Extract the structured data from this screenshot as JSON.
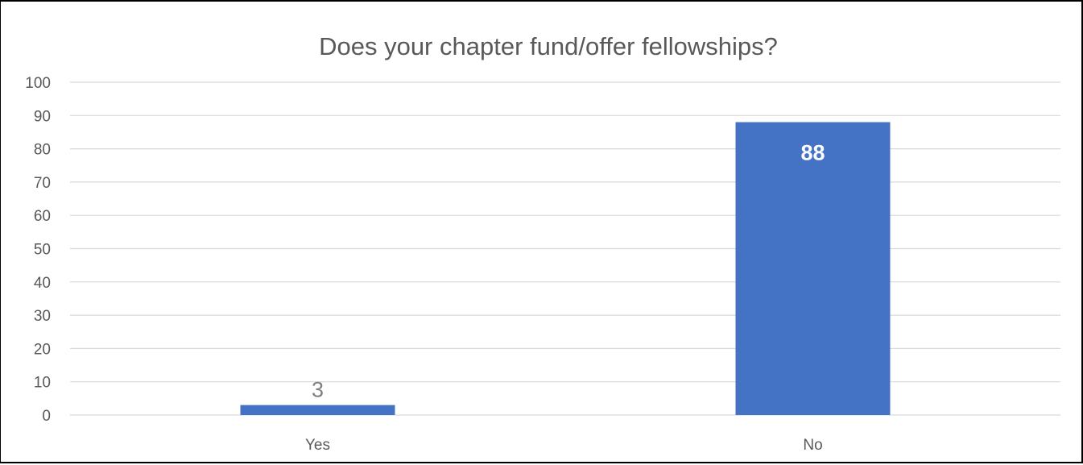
{
  "chart_data": {
    "type": "bar",
    "title": "Does your chapter fund/offer fellowships?",
    "categories": [
      "Yes",
      "No"
    ],
    "values": [
      3,
      88
    ],
    "data_labels": [
      "3",
      "88"
    ],
    "xlabel": "",
    "ylabel": "",
    "ylim": [
      0,
      100
    ],
    "yticks": [
      "0",
      "10",
      "20",
      "30",
      "40",
      "50",
      "60",
      "70",
      "80",
      "90",
      "100"
    ],
    "grid": true,
    "legend": "none",
    "bar_color": "#4472c4",
    "gridline_color": "#d9d9d9"
  }
}
